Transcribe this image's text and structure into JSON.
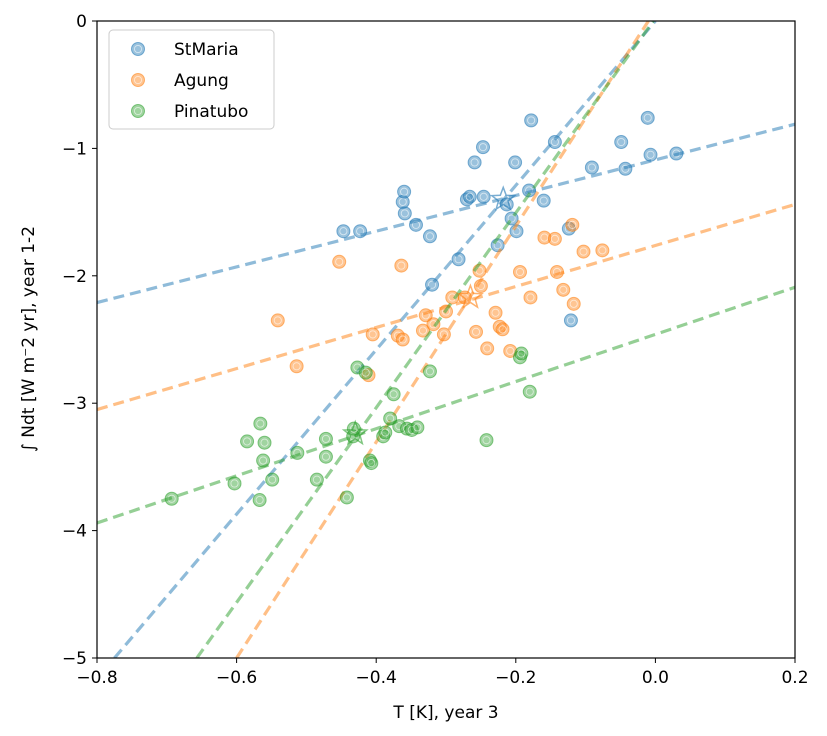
{
  "chart_data": {
    "type": "scatter",
    "xlabel": "T [K], year 3",
    "ylabel": "∫ Ndt [W m⁻2 yr], year 1-2",
    "xlim": [
      -0.8,
      0.2
    ],
    "ylim": [
      -5,
      0
    ],
    "xticks": [
      -0.8,
      -0.6,
      -0.4,
      -0.2,
      0.0,
      0.2
    ],
    "xtick_labels": [
      "−0.8",
      "−0.6",
      "−0.4",
      "−0.2",
      "0.0",
      "0.2"
    ],
    "yticks": [
      0,
      -1,
      -2,
      -3,
      -4,
      -5
    ],
    "ytick_labels": [
      "0",
      "−1",
      "−2",
      "−3",
      "−4",
      "−5"
    ],
    "grid": false,
    "legend_position": "top-left",
    "series": [
      {
        "name": "StMaria",
        "color": "#1f77b4",
        "points": [
          [
            -0.447,
            -1.65
          ],
          [
            -0.423,
            -1.65
          ],
          [
            -0.362,
            -1.42
          ],
          [
            -0.36,
            -1.34
          ],
          [
            -0.359,
            -1.51
          ],
          [
            -0.343,
            -1.6
          ],
          [
            -0.323,
            -1.69
          ],
          [
            -0.32,
            -2.07
          ],
          [
            -0.282,
            -1.87
          ],
          [
            -0.27,
            -1.4
          ],
          [
            -0.266,
            -1.38
          ],
          [
            -0.259,
            -1.11
          ],
          [
            -0.247,
            -0.99
          ],
          [
            -0.246,
            -1.38
          ],
          [
            -0.226,
            -1.76
          ],
          [
            -0.213,
            -1.44
          ],
          [
            -0.206,
            -1.55
          ],
          [
            -0.201,
            -1.11
          ],
          [
            -0.199,
            -1.65
          ],
          [
            -0.181,
            -1.33
          ],
          [
            -0.178,
            -0.78
          ],
          [
            -0.16,
            -1.41
          ],
          [
            -0.144,
            -0.95
          ],
          [
            -0.124,
            -1.63
          ],
          [
            -0.121,
            -2.35
          ],
          [
            -0.091,
            -1.15
          ],
          [
            -0.049,
            -0.95
          ],
          [
            -0.043,
            -1.16
          ],
          [
            -0.011,
            -0.76
          ],
          [
            -0.007,
            -1.05
          ],
          [
            0.03,
            -1.04
          ]
        ],
        "fit_lines": [
          {
            "x1": -0.8,
            "y1": -2.21,
            "x2": 0.2,
            "y2": -0.81
          },
          {
            "x1": -0.775,
            "y1": -5.0,
            "x2": 0.0,
            "y2": 0.0
          }
        ],
        "mean_marker": [
          -0.218,
          -1.4
        ]
      },
      {
        "name": "Agung",
        "color": "#ff7f0e",
        "points": [
          [
            -0.541,
            -2.35
          ],
          [
            -0.514,
            -2.71
          ],
          [
            -0.453,
            -1.89
          ],
          [
            -0.411,
            -2.78
          ],
          [
            -0.405,
            -2.46
          ],
          [
            -0.369,
            -2.47
          ],
          [
            -0.364,
            -1.92
          ],
          [
            -0.362,
            -2.5
          ],
          [
            -0.333,
            -2.43
          ],
          [
            -0.329,
            -2.31
          ],
          [
            -0.318,
            -2.38
          ],
          [
            -0.303,
            -2.46
          ],
          [
            -0.3,
            -2.28
          ],
          [
            -0.291,
            -2.17
          ],
          [
            -0.273,
            -2.17
          ],
          [
            -0.257,
            -2.44
          ],
          [
            -0.252,
            -1.96
          ],
          [
            -0.25,
            -2.08
          ],
          [
            -0.241,
            -2.57
          ],
          [
            -0.229,
            -2.29
          ],
          [
            -0.223,
            -2.4
          ],
          [
            -0.219,
            -2.42
          ],
          [
            -0.208,
            -2.59
          ],
          [
            -0.194,
            -1.97
          ],
          [
            -0.179,
            -2.17
          ],
          [
            -0.159,
            -1.7
          ],
          [
            -0.144,
            -1.71
          ],
          [
            -0.141,
            -1.97
          ],
          [
            -0.132,
            -2.11
          ],
          [
            -0.119,
            -1.6
          ],
          [
            -0.117,
            -2.22
          ],
          [
            -0.103,
            -1.81
          ],
          [
            -0.076,
            -1.8
          ]
        ],
        "fit_lines": [
          {
            "x1": -0.8,
            "y1": -3.05,
            "x2": 0.2,
            "y2": -1.44
          },
          {
            "x1": -0.6,
            "y1": -5.0,
            "x2": -0.01,
            "y2": 0.0
          }
        ],
        "mean_marker": [
          -0.265,
          -2.17
        ]
      },
      {
        "name": "Pinatubo",
        "color": "#2ca02c",
        "points": [
          [
            -0.693,
            -3.75
          ],
          [
            -0.603,
            -3.63
          ],
          [
            -0.585,
            -3.3
          ],
          [
            -0.567,
            -3.76
          ],
          [
            -0.566,
            -3.16
          ],
          [
            -0.562,
            -3.45
          ],
          [
            -0.56,
            -3.31
          ],
          [
            -0.549,
            -3.6
          ],
          [
            -0.513,
            -3.39
          ],
          [
            -0.485,
            -3.6
          ],
          [
            -0.472,
            -3.42
          ],
          [
            -0.472,
            -3.28
          ],
          [
            -0.442,
            -3.74
          ],
          [
            -0.433,
            -3.26
          ],
          [
            -0.432,
            -3.2
          ],
          [
            -0.427,
            -2.72
          ],
          [
            -0.415,
            -2.76
          ],
          [
            -0.409,
            -3.45
          ],
          [
            -0.407,
            -3.47
          ],
          [
            -0.39,
            -3.26
          ],
          [
            -0.387,
            -3.23
          ],
          [
            -0.38,
            -3.12
          ],
          [
            -0.375,
            -2.93
          ],
          [
            -0.367,
            -3.18
          ],
          [
            -0.356,
            -3.2
          ],
          [
            -0.349,
            -3.21
          ],
          [
            -0.341,
            -3.19
          ],
          [
            -0.323,
            -2.75
          ],
          [
            -0.242,
            -3.29
          ],
          [
            -0.194,
            -2.64
          ],
          [
            -0.192,
            -2.61
          ],
          [
            -0.18,
            -2.91
          ]
        ],
        "fit_lines": [
          {
            "x1": -0.8,
            "y1": -3.94,
            "x2": 0.2,
            "y2": -2.09
          },
          {
            "x1": -0.657,
            "y1": -5.0,
            "x2": -0.003,
            "y2": 0.0
          }
        ],
        "mean_marker": [
          -0.43,
          -3.24
        ]
      }
    ]
  }
}
